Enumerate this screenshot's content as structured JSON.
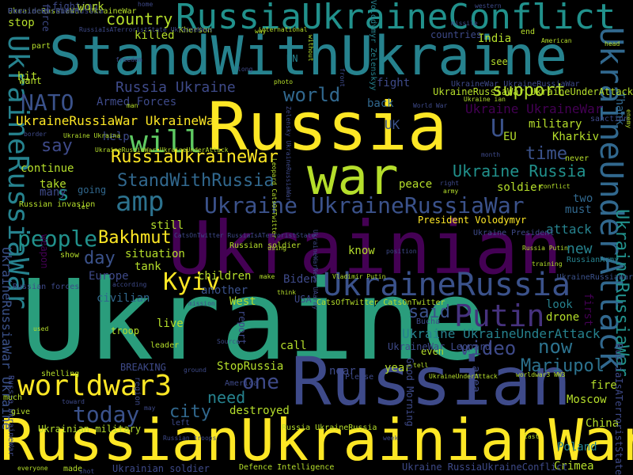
{
  "background": "#000000",
  "palette": {
    "purple": "#440154",
    "indigo": "#3b528b",
    "teal": "#21918c",
    "green": "#5ec962",
    "yellow": "#fde725"
  },
  "words": [
    {
      "text": "Ukraine",
      "color": "#2a9d7c"
    },
    {
      "text": "Ukrainian",
      "color": "#440154"
    },
    {
      "text": "Russian",
      "color": "#3e4a89"
    },
    {
      "text": "RussianUkrainianWar",
      "color": "#fde725"
    },
    {
      "text": "StandWithUkraine",
      "color": "#26828e"
    },
    {
      "text": "Russia",
      "color": "#fde725"
    },
    {
      "text": "war",
      "color": "#b5de2b"
    },
    {
      "text": "RussiaUkraineConflict",
      "color": "#21918c"
    },
    {
      "text": "UkraineUnderAttack",
      "color": "#31688e"
    },
    {
      "text": "UkraineRussia",
      "color": "#3b528b"
    },
    {
      "text": "UkraineRussiaWar",
      "color": "#26828e"
    },
    {
      "text": "worldwar3",
      "color": "#fde725"
    },
    {
      "text": "Putin",
      "color": "#46327e"
    },
    {
      "text": "will",
      "color": "#5ec962"
    },
    {
      "text": "amp",
      "color": "#2c728e"
    },
    {
      "text": "Ukraine UkraineRussiaWar",
      "color": "#3b528b"
    },
    {
      "text": "Kyiv",
      "color": "#fde725"
    },
    {
      "text": "StandWithRussia",
      "color": "#31688e"
    },
    {
      "text": "people",
      "color": "#21918c"
    },
    {
      "text": "Bakhmut",
      "color": "#fde725"
    },
    {
      "text": "NATO",
      "color": "#3b528b"
    },
    {
      "text": "RussiaUkraineWar",
      "color": "#fde725"
    },
    {
      "text": "today",
      "color": "#3b528b"
    },
    {
      "text": "video",
      "color": "#3e4a89"
    },
    {
      "text": "now",
      "color": "#2c728e"
    },
    {
      "text": "one",
      "color": "#3e4a89"
    },
    {
      "text": "Mariupol",
      "color": "#2c728e"
    },
    {
      "text": "support",
      "color": "#b5de2b"
    },
    {
      "text": "world",
      "color": "#31688e"
    },
    {
      "text": "country",
      "color": "#b5de2b"
    },
    {
      "text": "say",
      "color": "#3e4a89"
    },
    {
      "text": "time",
      "color": "#3b528b"
    },
    {
      "text": "Ukraine Russia",
      "color": "#21918c"
    },
    {
      "text": "Ukraine UkraineUnderAttack",
      "color": "#26828e"
    },
    {
      "text": "city",
      "color": "#31688e"
    },
    {
      "text": "need",
      "color": "#26828e"
    },
    {
      "text": "said",
      "color": "#3b528b"
    },
    {
      "text": "day",
      "color": "#3b528b"
    },
    {
      "text": "Russia Ukraine",
      "color": "#3e4a89"
    },
    {
      "text": "UkraineRussiaWar UkraineWar",
      "color": "#fde725"
    },
    {
      "text": "Armed Forces",
      "color": "#3e4a89"
    },
    {
      "text": "killed",
      "color": "#b5de2b"
    },
    {
      "text": "new",
      "color": "#26828e"
    },
    {
      "text": "s",
      "color": "#21918c"
    },
    {
      "text": "Ukraine UkraineWar",
      "color": "#440154"
    },
    {
      "text": "UkraineRussiaWar",
      "color": "#21918c"
    },
    {
      "text": "UkraineRussiaWar Ukraine",
      "color": "#3b528b"
    },
    {
      "text": "help",
      "color": "#3e4a89"
    },
    {
      "text": "continue",
      "color": "#b5de2b"
    },
    {
      "text": "take",
      "color": "#b5de2b"
    },
    {
      "text": "many",
      "color": "#3e4a89"
    },
    {
      "text": "going",
      "color": "#31688e"
    },
    {
      "text": "still",
      "color": "#b5de2b"
    },
    {
      "text": "situation",
      "color": "#b5de2b"
    },
    {
      "text": "tank",
      "color": "#b5de2b"
    },
    {
      "text": "Europe",
      "color": "#3e4a89"
    },
    {
      "text": "civilian",
      "color": "#31688e"
    },
    {
      "text": "children",
      "color": "#b5de2b"
    },
    {
      "text": "another",
      "color": "#3b528b"
    },
    {
      "text": "West",
      "color": "#b5de2b"
    },
    {
      "text": "live",
      "color": "#b5de2b"
    },
    {
      "text": "StopRussia",
      "color": "#b5de2b"
    },
    {
      "text": "destroyed",
      "color": "#b5de2b"
    },
    {
      "text": "near",
      "color": "#3e4a89"
    },
    {
      "text": "year",
      "color": "#b5de2b"
    },
    {
      "text": "Kharkiv",
      "color": "#b5de2b"
    },
    {
      "text": "military",
      "color": "#b5de2b"
    },
    {
      "text": "UK",
      "color": "#3b528b"
    },
    {
      "text": "U",
      "color": "#3b528b"
    },
    {
      "text": "EU",
      "color": "#b5de2b"
    },
    {
      "text": "soldier",
      "color": "#b5de2b"
    },
    {
      "text": "peace",
      "color": "#b5de2b"
    },
    {
      "text": "attack",
      "color": "#26828e"
    },
    {
      "text": "two",
      "color": "#31688e"
    },
    {
      "text": "must",
      "color": "#31688e"
    },
    {
      "text": "look",
      "color": "#26828e"
    },
    {
      "text": "drone",
      "color": "#b5de2b"
    },
    {
      "text": "fire",
      "color": "#b5de2b"
    },
    {
      "text": "Moscow",
      "color": "#b5de2b"
    },
    {
      "text": "China",
      "color": "#b5de2b"
    },
    {
      "text": "Poland",
      "color": "#26828e"
    },
    {
      "text": "Crimea",
      "color": "#b5de2b"
    },
    {
      "text": "fight",
      "color": "#3e4a89"
    },
    {
      "text": "back",
      "color": "#31688e"
    },
    {
      "text": "India",
      "color": "#b5de2b"
    },
    {
      "text": "Thank",
      "color": "#31688e"
    },
    {
      "text": "first",
      "color": "#440154"
    },
    {
      "text": "UkraineRussiaWar",
      "color": "#3b528b"
    },
    {
      "text": "RussiaIsATerroristState",
      "color": "#3e4a89"
    },
    {
      "text": "Russia UkraineWar",
      "color": "#3e4a89"
    },
    {
      "text": "Biden",
      "color": "#3e4a89"
    },
    {
      "text": "USA",
      "color": "#3e4a89"
    },
    {
      "text": "call",
      "color": "#b5de2b"
    },
    {
      "text": "BREAKING",
      "color": "#3e4a89"
    },
    {
      "text": "report",
      "color": "#3e4a89"
    },
    {
      "text": "area",
      "color": "#3e4a89"
    },
    {
      "text": "President Volodymyr",
      "color": "#fde725"
    },
    {
      "text": "Russian soldier",
      "color": "#b5de2b"
    },
    {
      "text": "know",
      "color": "#b5de2b"
    },
    {
      "text": "weapon",
      "color": "#440154"
    },
    {
      "text": "Ukrainian military",
      "color": "#b5de2b"
    },
    {
      "text": "Ukrainian soldier",
      "color": "#3e4a89"
    },
    {
      "text": "Defence Intelligence",
      "color": "#b5de2b"
    },
    {
      "text": "Ukraine RussiaUkraineConflict",
      "color": "#3e4a89"
    },
    {
      "text": "made",
      "color": "#b5de2b"
    },
    {
      "text": "CatsOfTwitter CatsOnTwitter",
      "color": "#b5de2b"
    },
    {
      "text": "Russian invasion",
      "color": "#b5de2b"
    },
    {
      "text": "Russia UkraineRussia",
      "color": "#b5de2b"
    },
    {
      "text": "Bucha",
      "color": "#3e4a89"
    },
    {
      "text": "even",
      "color": "#b5de2b"
    },
    {
      "text": "force",
      "color": "#3e4a89"
    },
    {
      "text": "part",
      "color": "#b5de2b"
    },
    {
      "text": "stop",
      "color": "#b5de2b"
    },
    {
      "text": "hit",
      "color": "#b5de2b"
    },
    {
      "text": "want",
      "color": "#b5de2b"
    },
    {
      "text": "fighting",
      "color": "#3e4a89"
    },
    {
      "text": "work",
      "color": "#b5de2b"
    },
    {
      "text": "UN",
      "color": "#26828e"
    },
    {
      "text": "countries",
      "color": "#3e4a89"
    },
    {
      "text": "see",
      "color": "#b5de2b"
    },
    {
      "text": "end",
      "color": "#b5de2b"
    },
    {
      "text": "Volodymyr Zelenskyy",
      "color": "#26828e"
    },
    {
      "text": "UkraineWar UkraineRussiaWar",
      "color": "#3e4a89"
    },
    {
      "text": "UkraineRussiaWar UkraineUnderAttack",
      "color": "#b5de2b"
    },
    {
      "text": "Ukraine ian",
      "color": "#b5de2b"
    },
    {
      "text": "Good Morning",
      "color": "#3e4a89"
    },
    {
      "text": "UkraineWar Leopard",
      "color": "#3e4a89"
    },
    {
      "text": "Zelensky UkraineRussiaWar",
      "color": "#3e4a89"
    },
    {
      "text": "Leopard CatsOfTwitter",
      "color": "#b5de2b"
    },
    {
      "text": "Vladimir Putin",
      "color": "#b5de2b"
    },
    {
      "text": "Russia Putin",
      "color": "#b5de2b"
    },
    {
      "text": "RussianArmy",
      "color": "#26828e"
    },
    {
      "text": "sanction",
      "color": "#3e4a89"
    },
    {
      "text": "home",
      "color": "#3e4a89"
    },
    {
      "text": "Kherson",
      "color": "#b5de2b"
    },
    {
      "text": "international",
      "color": "#b5de2b"
    },
    {
      "text": "RussiaIsATerroristState UkraineNews",
      "color": "#3e4a89"
    },
    {
      "text": "Ukraine President",
      "color": "#3e4a89"
    },
    {
      "text": "UkraineRussiaWar UkraineUnderAttack",
      "color": "#b5de2b"
    },
    {
      "text": "Ukraine Ukraina",
      "color": "#b5de2b"
    },
    {
      "text": "border",
      "color": "#3e4a89"
    },
    {
      "text": "shelling",
      "color": "#b5de2b"
    },
    {
      "text": "America",
      "color": "#3e4a89"
    },
    {
      "text": "Please",
      "color": "#3e4a89"
    },
    {
      "text": "troop",
      "color": "#b5de2b"
    },
    {
      "text": "leader",
      "color": "#b5de2b"
    },
    {
      "text": "right",
      "color": "#3e4a89"
    },
    {
      "text": "army",
      "color": "#b5de2b"
    },
    {
      "text": "conflict",
      "color": "#b5de2b"
    },
    {
      "text": "training",
      "color": "#b5de2b"
    },
    {
      "text": "according",
      "color": "#3e4a89"
    },
    {
      "text": "position",
      "color": "#3e4a89"
    },
    {
      "text": "using",
      "color": "#b5de2b"
    },
    {
      "text": "photo",
      "color": "#b5de2b"
    },
    {
      "text": "everyone",
      "color": "#b5de2b"
    },
    {
      "text": "Russian troops",
      "color": "#3e4a89"
    },
    {
      "text": "week",
      "color": "#3e4a89"
    },
    {
      "text": "left",
      "color": "#3e4a89"
    },
    {
      "text": "much",
      "color": "#b5de2b"
    },
    {
      "text": "give",
      "color": "#b5de2b"
    },
    {
      "text": "may",
      "color": "#3e4a89"
    },
    {
      "text": "American",
      "color": "#b5de2b"
    },
    {
      "text": "freedom",
      "color": "#3e4a89"
    },
    {
      "text": "think",
      "color": "#b5de2b"
    },
    {
      "text": "make",
      "color": "#b5de2b"
    },
    {
      "text": "used",
      "color": "#b5de2b"
    },
    {
      "text": "month",
      "color": "#3e4a89"
    },
    {
      "text": "never",
      "color": "#b5de2b"
    },
    {
      "text": "last",
      "color": "#b5de2b"
    },
    {
      "text": "UkraineUnderAttack",
      "color": "#b5de2b"
    },
    {
      "text": "worldwar3 WW3",
      "color": "#b5de2b"
    },
    {
      "text": "UkraineWarNews UAarmy",
      "color": "#3e4a89"
    },
    {
      "text": "Russian forces",
      "color": "#3e4a89"
    },
    {
      "text": "show",
      "color": "#b5de2b"
    },
    {
      "text": "let",
      "color": "#b5de2b"
    },
    {
      "text": "region",
      "color": "#3e4a89"
    },
    {
      "text": "CatsOnTwitter RussiaIsATerroristState",
      "color": "#3e4a89"
    },
    {
      "text": "Source",
      "color": "#3e4a89"
    },
    {
      "text": "way",
      "color": "#b5de2b"
    },
    {
      "text": "man",
      "color": "#b5de2b"
    },
    {
      "text": "long",
      "color": "#3e4a89"
    },
    {
      "text": "World War",
      "color": "#3e4a89"
    },
    {
      "text": "front",
      "color": "#3e4a89"
    },
    {
      "text": "enemy",
      "color": "#b5de2b"
    },
    {
      "text": "ground",
      "color": "#3e4a89"
    },
    {
      "text": "mission",
      "color": "#3e4a89"
    },
    {
      "text": "toward",
      "color": "#3e4a89"
    },
    {
      "text": "without",
      "color": "#b5de2b"
    },
    {
      "text": "head",
      "color": "#b5de2b"
    },
    {
      "text": "tell",
      "color": "#b5de2b"
    },
    {
      "text": "shot",
      "color": "#3e4a89"
    },
    {
      "text": "missile",
      "color": "#3e4a89"
    },
    {
      "text": "western",
      "color": "#3e4a89"
    },
    {
      "text": "UkraineRussiaWar UkraineWar",
      "color": "#b5de2b"
    },
    {
      "text": "President Putin",
      "color": "#3e4a89"
    },
    {
      "text": "Russia UkraineRussia",
      "color": "#3e4a89"
    }
  ]
}
